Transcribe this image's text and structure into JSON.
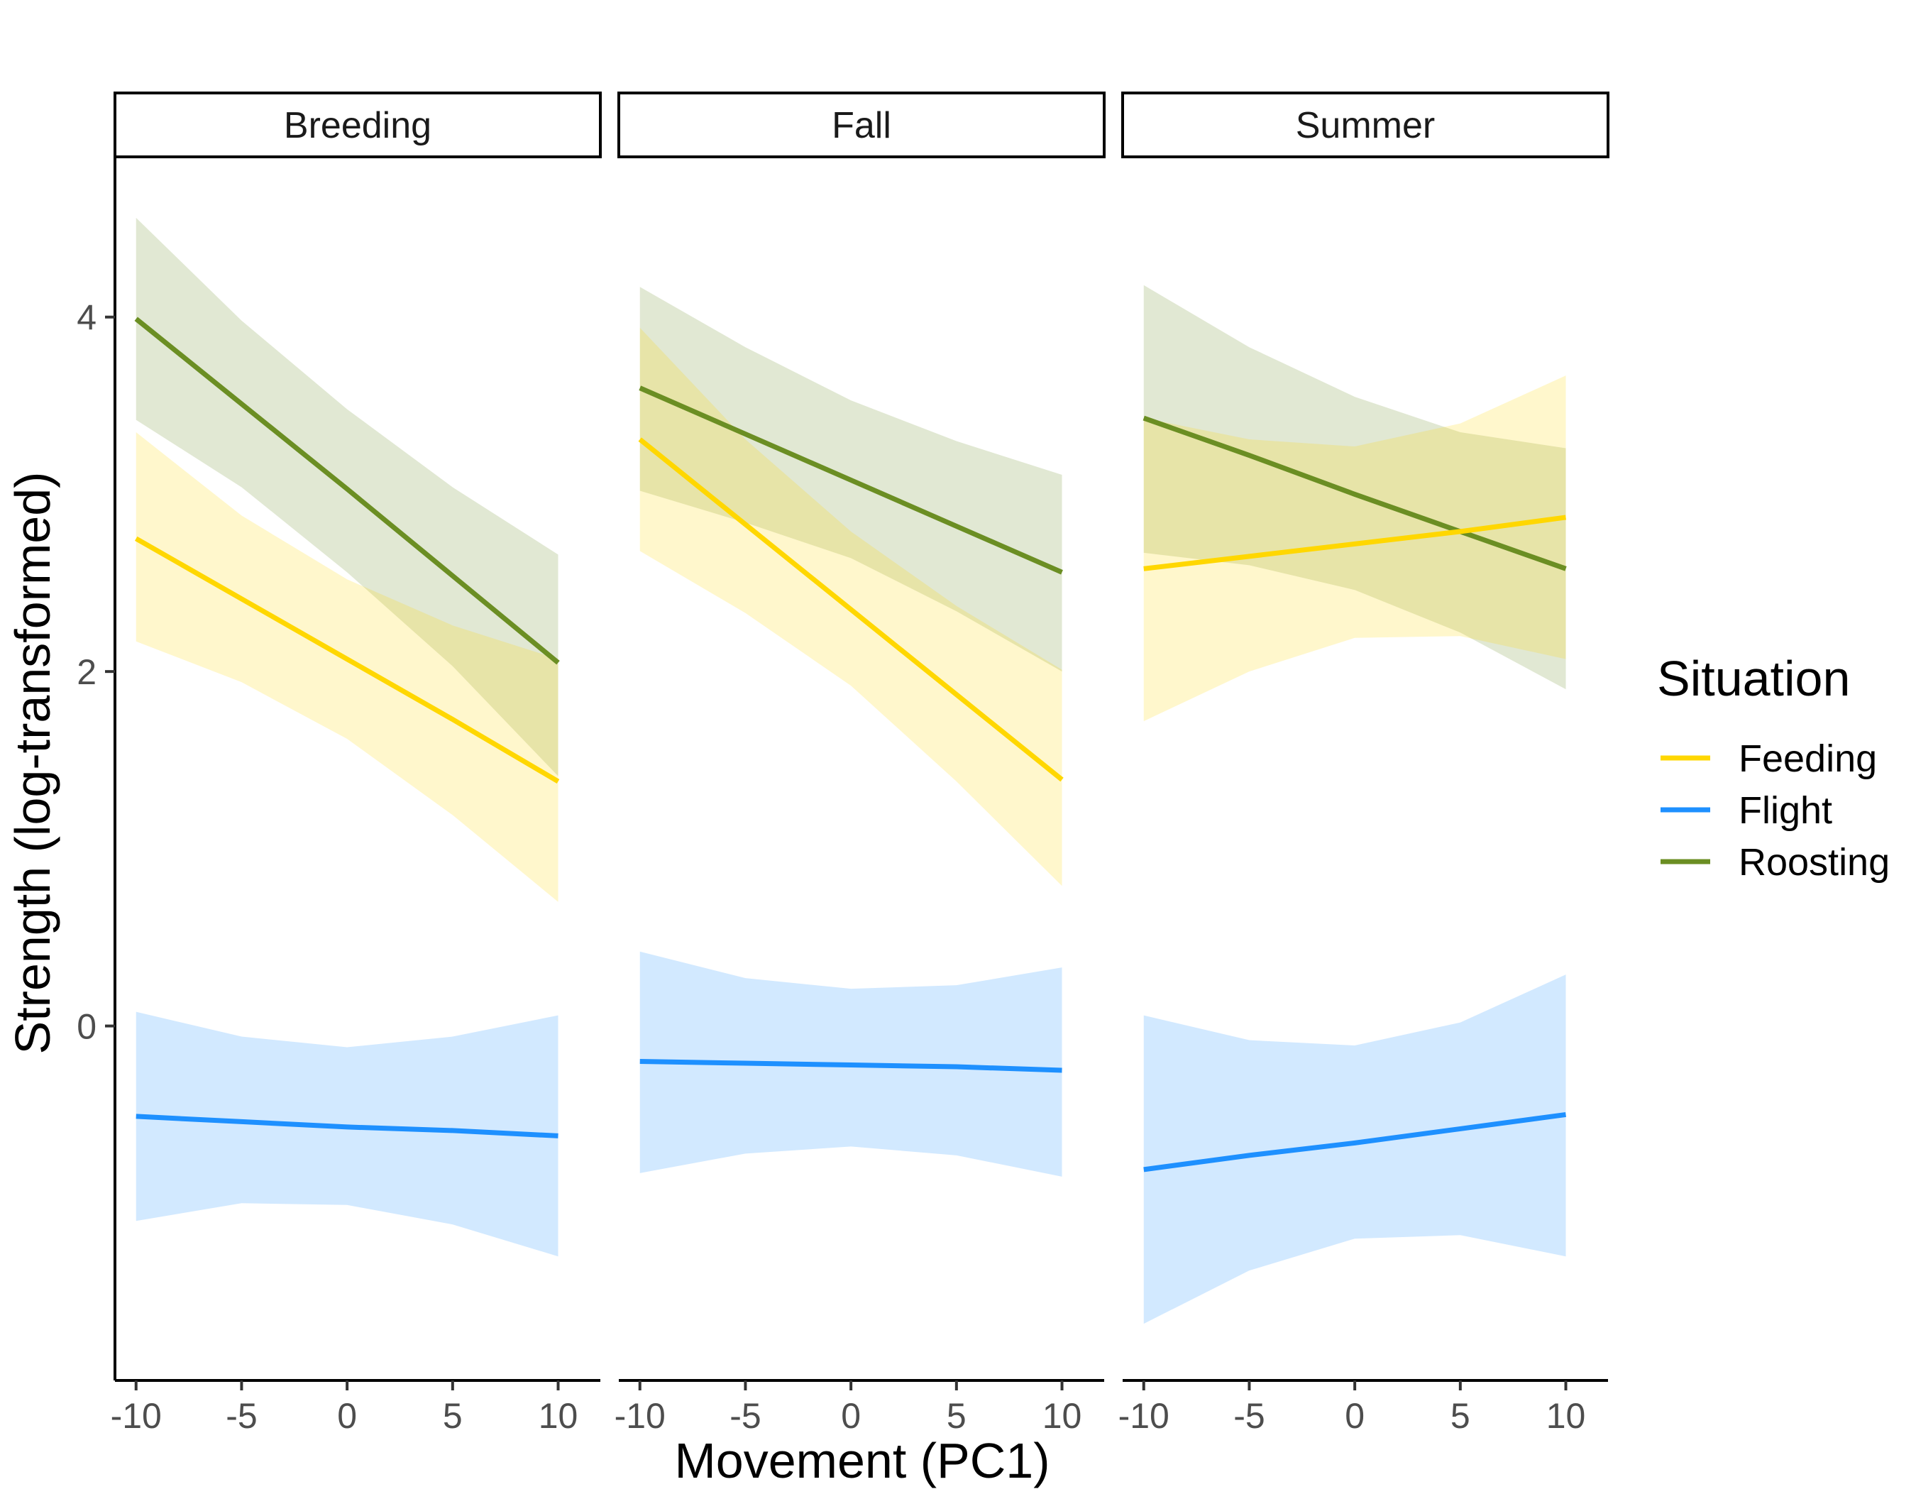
{
  "chart_data": {
    "type": "line",
    "xlabel": "Movement (PC1)",
    "ylabel": "Strength (log-transformed)",
    "xlim": [
      -11,
      12
    ],
    "ylim": [
      -2,
      4.9
    ],
    "x_ticks": [
      -10,
      -5,
      0,
      5,
      10
    ],
    "x_tick_labels": [
      "-10",
      "-5",
      "0",
      "5",
      "10"
    ],
    "y_ticks": [
      0,
      2,
      4
    ],
    "y_tick_labels": [
      "0",
      "2",
      "4"
    ],
    "x": [
      -10,
      -5,
      0,
      5,
      10
    ],
    "legend": {
      "title": "Situation",
      "entries": [
        {
          "name": "Feeding",
          "color": "#FFD700"
        },
        {
          "name": "Flight",
          "color": "#1E90FF"
        },
        {
          "name": "Roosting",
          "color": "#6B8E23"
        }
      ]
    },
    "panels": [
      {
        "name": "Breeding",
        "series": [
          {
            "name": "Roosting",
            "color": "#6B8E23",
            "values": [
              3.99,
              3.51,
              3.03,
              2.54,
              2.05
            ],
            "lower": [
              3.42,
              3.04,
              2.56,
              2.03,
              1.41
            ],
            "upper": [
              4.56,
              3.98,
              3.48,
              3.04,
              2.66
            ]
          },
          {
            "name": "Feeding",
            "color": "#FFD700",
            "values": [
              2.75,
              2.41,
              2.07,
              1.73,
              1.38
            ],
            "lower": [
              2.17,
              1.94,
              1.62,
              1.19,
              0.7
            ],
            "upper": [
              3.35,
              2.88,
              2.52,
              2.26,
              2.07
            ]
          },
          {
            "name": "Flight",
            "color": "#1E90FF",
            "values": [
              -0.51,
              -0.54,
              -0.57,
              -0.59,
              -0.62
            ],
            "lower": [
              -1.1,
              -1.0,
              -1.01,
              -1.12,
              -1.3
            ],
            "upper": [
              0.08,
              -0.06,
              -0.12,
              -0.06,
              0.06
            ]
          }
        ]
      },
      {
        "name": "Fall",
        "series": [
          {
            "name": "Roosting",
            "color": "#6B8E23",
            "values": [
              3.6,
              3.34,
              3.08,
              2.82,
              2.56
            ],
            "lower": [
              3.02,
              2.84,
              2.64,
              2.34,
              2.0
            ],
            "upper": [
              4.17,
              3.83,
              3.53,
              3.3,
              3.11
            ]
          },
          {
            "name": "Feeding",
            "color": "#FFD700",
            "values": [
              3.31,
              2.83,
              2.35,
              1.87,
              1.39
            ],
            "lower": [
              2.68,
              2.33,
              1.92,
              1.38,
              0.79
            ],
            "upper": [
              3.94,
              3.31,
              2.79,
              2.37,
              2.01
            ]
          },
          {
            "name": "Flight",
            "color": "#1E90FF",
            "values": [
              -0.2,
              -0.21,
              -0.22,
              -0.23,
              -0.25
            ],
            "lower": [
              -0.83,
              -0.72,
              -0.68,
              -0.73,
              -0.85
            ],
            "upper": [
              0.42,
              0.27,
              0.21,
              0.23,
              0.33
            ]
          }
        ]
      },
      {
        "name": "Summer",
        "series": [
          {
            "name": "Roosting",
            "color": "#6B8E23",
            "values": [
              3.43,
              3.22,
              3.0,
              2.79,
              2.58
            ],
            "lower": [
              2.67,
              2.6,
              2.46,
              2.22,
              1.9
            ],
            "upper": [
              4.18,
              3.83,
              3.55,
              3.35,
              3.26
            ]
          },
          {
            "name": "Feeding",
            "color": "#FFD700",
            "values": [
              2.58,
              2.65,
              2.72,
              2.79,
              2.87
            ],
            "lower": [
              1.72,
              2.0,
              2.19,
              2.2,
              2.07
            ],
            "upper": [
              3.43,
              3.31,
              3.27,
              3.4,
              3.67
            ]
          },
          {
            "name": "Flight",
            "color": "#1E90FF",
            "values": [
              -0.81,
              -0.73,
              -0.66,
              -0.58,
              -0.5
            ],
            "lower": [
              -1.68,
              -1.38,
              -1.2,
              -1.18,
              -1.3
            ],
            "upper": [
              0.06,
              -0.08,
              -0.11,
              0.02,
              0.29
            ]
          }
        ]
      }
    ]
  }
}
